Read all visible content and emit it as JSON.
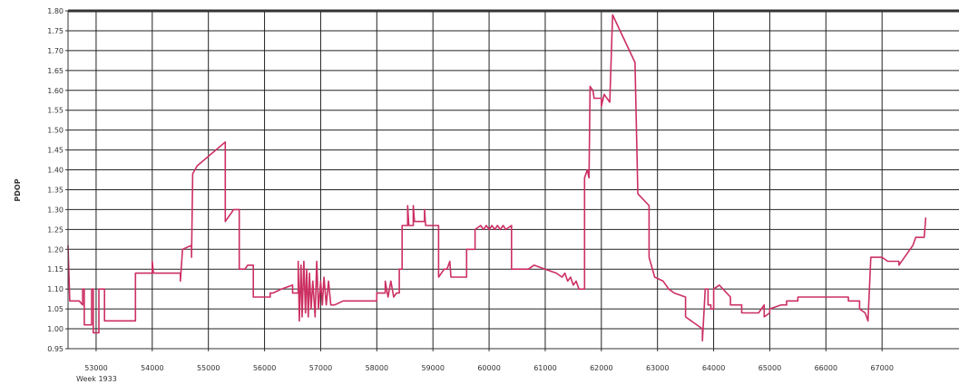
{
  "chart_data": {
    "type": "line",
    "title": "",
    "ylabel": "PDOP",
    "xlabel": "",
    "x_extra_label": "Week 1933",
    "grid": true,
    "legend": "none",
    "line_color": "#cc2f62",
    "xlim": [
      52500,
      68500
    ],
    "ylim": [
      0.95,
      1.8
    ],
    "x_ticks": [
      {
        "v": 53000,
        "label": "53000"
      },
      {
        "v": 54000,
        "label": "54000"
      },
      {
        "v": 55000,
        "label": "55000"
      },
      {
        "v": 56000,
        "label": "56000"
      },
      {
        "v": 57000,
        "label": "57000"
      },
      {
        "v": 58000,
        "label": "58000"
      },
      {
        "v": 59000,
        "label": "59000"
      },
      {
        "v": 60000,
        "label": "60000"
      },
      {
        "v": 61000,
        "label": "61000"
      },
      {
        "v": 62000,
        "label": "62000"
      },
      {
        "v": 63000,
        "label": "63000"
      },
      {
        "v": 64000,
        "label": "64000"
      },
      {
        "v": 65000,
        "label": "65000"
      },
      {
        "v": 66000,
        "label": "66000"
      },
      {
        "v": 67000,
        "label": "67000"
      }
    ],
    "y_ticks": [
      {
        "v": 0.95,
        "label": "0.95"
      },
      {
        "v": 1.0,
        "label": "1.00"
      },
      {
        "v": 1.05,
        "label": "1.05"
      },
      {
        "v": 1.1,
        "label": "1.10"
      },
      {
        "v": 1.15,
        "label": "1.15"
      },
      {
        "v": 1.2,
        "label": "1.20"
      },
      {
        "v": 1.25,
        "label": "1.25"
      },
      {
        "v": 1.3,
        "label": "1.30"
      },
      {
        "v": 1.35,
        "label": "1.35"
      },
      {
        "v": 1.4,
        "label": "1.40"
      },
      {
        "v": 1.45,
        "label": "1.45"
      },
      {
        "v": 1.5,
        "label": "1.50"
      },
      {
        "v": 1.55,
        "label": "1.55"
      },
      {
        "v": 1.6,
        "label": "1.60"
      },
      {
        "v": 1.65,
        "label": "1.65"
      },
      {
        "v": 1.7,
        "label": "1.70"
      },
      {
        "v": 1.75,
        "label": "1.75"
      },
      {
        "v": 1.8,
        "label": "1.80"
      }
    ],
    "points": [
      [
        52500,
        1.21
      ],
      [
        52530,
        1.07
      ],
      [
        52700,
        1.07
      ],
      [
        52760,
        1.06
      ],
      [
        52760,
        1.1
      ],
      [
        52790,
        1.1
      ],
      [
        52790,
        1.01
      ],
      [
        52920,
        1.01
      ],
      [
        52920,
        1.1
      ],
      [
        52950,
        1.1
      ],
      [
        52950,
        0.99
      ],
      [
        53050,
        0.99
      ],
      [
        53050,
        1.1
      ],
      [
        53150,
        1.1
      ],
      [
        53150,
        1.02
      ],
      [
        53700,
        1.02
      ],
      [
        53700,
        1.14
      ],
      [
        54000,
        1.14
      ],
      [
        54000,
        1.17
      ],
      [
        54020,
        1.14
      ],
      [
        54500,
        1.14
      ],
      [
        54500,
        1.12
      ],
      [
        54540,
        1.2
      ],
      [
        54700,
        1.21
      ],
      [
        54700,
        1.18
      ],
      [
        54720,
        1.39
      ],
      [
        54800,
        1.41
      ],
      [
        55300,
        1.47
      ],
      [
        55300,
        1.27
      ],
      [
        55450,
        1.3
      ],
      [
        55550,
        1.3
      ],
      [
        55550,
        1.15
      ],
      [
        55650,
        1.15
      ],
      [
        55700,
        1.16
      ],
      [
        55800,
        1.16
      ],
      [
        55800,
        1.08
      ],
      [
        56100,
        1.08
      ],
      [
        56100,
        1.09
      ],
      [
        56150,
        1.09
      ],
      [
        56300,
        1.1
      ],
      [
        56500,
        1.11
      ],
      [
        56500,
        1.09
      ],
      [
        56600,
        1.09
      ],
      [
        56600,
        1.17
      ],
      [
        56620,
        1.02
      ],
      [
        56650,
        1.16
      ],
      [
        56670,
        1.03
      ],
      [
        56700,
        1.17
      ],
      [
        56730,
        1.04
      ],
      [
        56750,
        1.15
      ],
      [
        56780,
        1.03
      ],
      [
        56800,
        1.14
      ],
      [
        56830,
        1.05
      ],
      [
        56860,
        1.12
      ],
      [
        56900,
        1.03
      ],
      [
        56930,
        1.17
      ],
      [
        56960,
        1.05
      ],
      [
        57000,
        1.12
      ],
      [
        57030,
        1.06
      ],
      [
        57060,
        1.13
      ],
      [
        57100,
        1.06
      ],
      [
        57140,
        1.12
      ],
      [
        57180,
        1.06
      ],
      [
        57250,
        1.06
      ],
      [
        57400,
        1.07
      ],
      [
        57600,
        1.07
      ],
      [
        57700,
        1.07
      ],
      [
        57800,
        1.07
      ],
      [
        58000,
        1.07
      ],
      [
        58000,
        1.09
      ],
      [
        58150,
        1.09
      ],
      [
        58150,
        1.12
      ],
      [
        58200,
        1.08
      ],
      [
        58250,
        1.12
      ],
      [
        58300,
        1.08
      ],
      [
        58350,
        1.09
      ],
      [
        58400,
        1.09
      ],
      [
        58400,
        1.15
      ],
      [
        58450,
        1.15
      ],
      [
        58450,
        1.26
      ],
      [
        58550,
        1.26
      ],
      [
        58550,
        1.31
      ],
      [
        58570,
        1.26
      ],
      [
        58650,
        1.26
      ],
      [
        58650,
        1.31
      ],
      [
        58670,
        1.27
      ],
      [
        58850,
        1.27
      ],
      [
        58850,
        1.3
      ],
      [
        58870,
        1.26
      ],
      [
        59100,
        1.26
      ],
      [
        59100,
        1.13
      ],
      [
        59200,
        1.15
      ],
      [
        59250,
        1.15
      ],
      [
        59300,
        1.17
      ],
      [
        59320,
        1.13
      ],
      [
        59600,
        1.13
      ],
      [
        59600,
        1.2
      ],
      [
        59750,
        1.2
      ],
      [
        59750,
        1.25
      ],
      [
        59850,
        1.26
      ],
      [
        59900,
        1.25
      ],
      [
        59950,
        1.26
      ],
      [
        60000,
        1.25
      ],
      [
        60050,
        1.26
      ],
      [
        60100,
        1.25
      ],
      [
        60150,
        1.26
      ],
      [
        60200,
        1.25
      ],
      [
        60250,
        1.26
      ],
      [
        60300,
        1.25
      ],
      [
        60400,
        1.26
      ],
      [
        60400,
        1.15
      ],
      [
        60700,
        1.15
      ],
      [
        60800,
        1.16
      ],
      [
        61000,
        1.15
      ],
      [
        61200,
        1.14
      ],
      [
        61300,
        1.13
      ],
      [
        61350,
        1.14
      ],
      [
        61400,
        1.12
      ],
      [
        61450,
        1.13
      ],
      [
        61500,
        1.11
      ],
      [
        61550,
        1.12
      ],
      [
        61600,
        1.1
      ],
      [
        61700,
        1.1
      ],
      [
        61700,
        1.38
      ],
      [
        61750,
        1.4
      ],
      [
        61780,
        1.38
      ],
      [
        61800,
        1.61
      ],
      [
        61850,
        1.6
      ],
      [
        61870,
        1.58
      ],
      [
        62000,
        1.58
      ],
      [
        62000,
        1.56
      ],
      [
        62050,
        1.59
      ],
      [
        62150,
        1.57
      ],
      [
        62200,
        1.79
      ],
      [
        62600,
        1.67
      ],
      [
        62650,
        1.34
      ],
      [
        62850,
        1.31
      ],
      [
        62850,
        1.18
      ],
      [
        62950,
        1.13
      ],
      [
        63100,
        1.12
      ],
      [
        63200,
        1.1
      ],
      [
        63300,
        1.09
      ],
      [
        63500,
        1.08
      ],
      [
        63500,
        1.03
      ],
      [
        63800,
        1.0
      ],
      [
        63800,
        0.97
      ],
      [
        63850,
        1.1
      ],
      [
        63900,
        1.1
      ],
      [
        63900,
        1.06
      ],
      [
        63950,
        1.06
      ],
      [
        63950,
        1.05
      ],
      [
        64000,
        1.05
      ],
      [
        64000,
        1.1
      ],
      [
        64100,
        1.11
      ],
      [
        64300,
        1.08
      ],
      [
        64300,
        1.06
      ],
      [
        64500,
        1.06
      ],
      [
        64500,
        1.04
      ],
      [
        64800,
        1.04
      ],
      [
        64900,
        1.06
      ],
      [
        64900,
        1.03
      ],
      [
        65000,
        1.04
      ],
      [
        65000,
        1.05
      ],
      [
        65200,
        1.06
      ],
      [
        65300,
        1.06
      ],
      [
        65300,
        1.07
      ],
      [
        65500,
        1.07
      ],
      [
        65500,
        1.08
      ],
      [
        65800,
        1.08
      ],
      [
        66200,
        1.08
      ],
      [
        66400,
        1.08
      ],
      [
        66400,
        1.07
      ],
      [
        66600,
        1.07
      ],
      [
        66600,
        1.05
      ],
      [
        66700,
        1.04
      ],
      [
        66750,
        1.02
      ],
      [
        66800,
        1.18
      ],
      [
        67000,
        1.18
      ],
      [
        67100,
        1.17
      ],
      [
        67300,
        1.17
      ],
      [
        67300,
        1.16
      ],
      [
        67450,
        1.19
      ],
      [
        67550,
        1.21
      ],
      [
        67600,
        1.23
      ],
      [
        67750,
        1.23
      ],
      [
        67780,
        1.28
      ]
    ]
  }
}
